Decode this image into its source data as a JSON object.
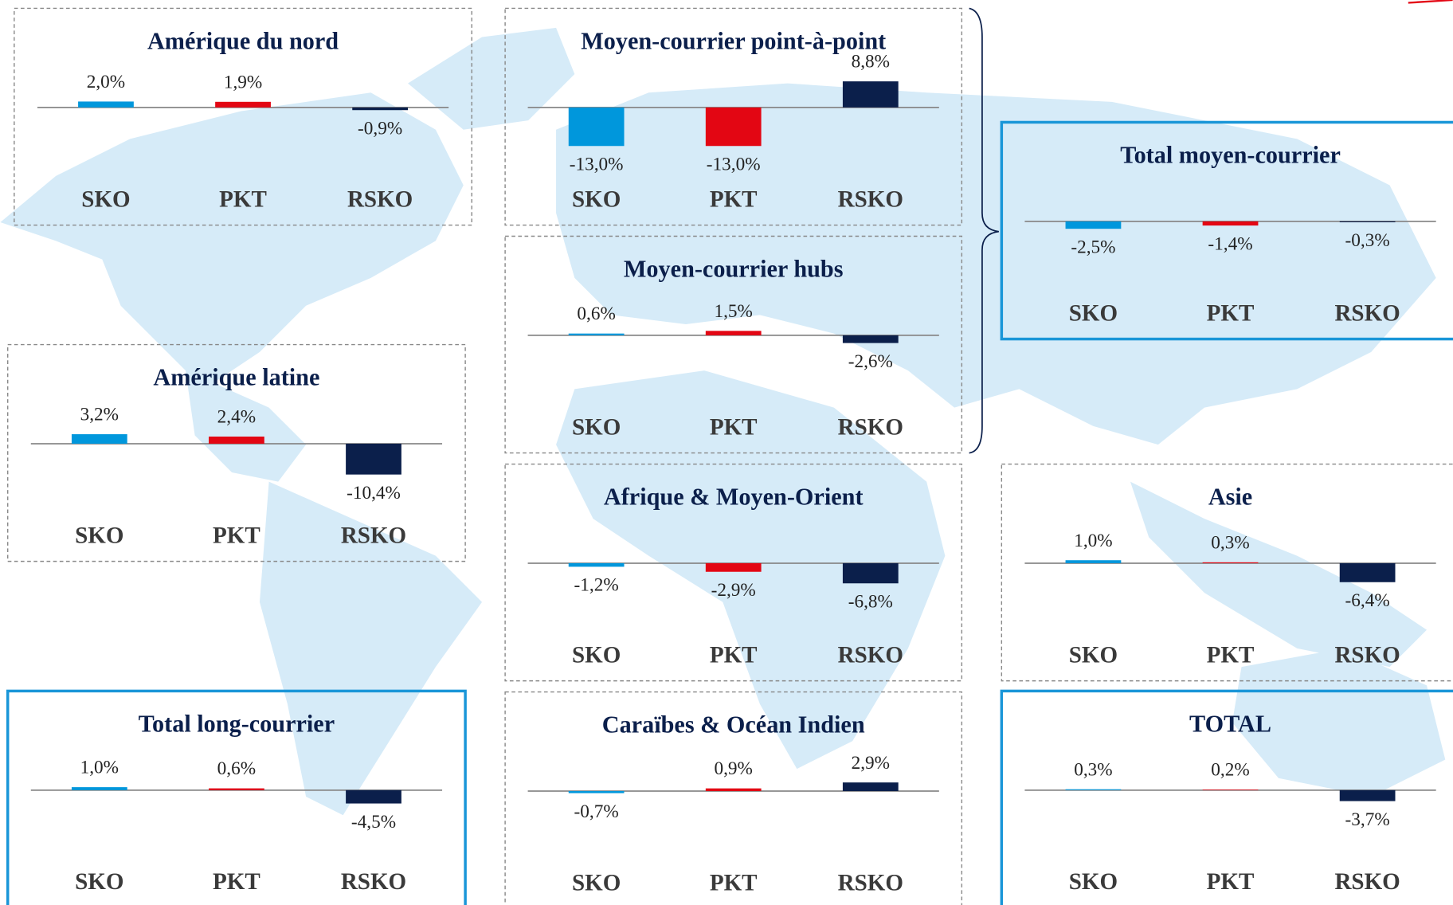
{
  "chart_data": [
    {
      "type": "bar",
      "title": "Amérique du nord",
      "categories": [
        "SKO",
        "PKT",
        "RSKO"
      ],
      "values": [
        2.0,
        1.9,
        -0.9
      ],
      "value_labels": [
        "2,0%",
        "1,9%",
        "-0,9%"
      ],
      "colors": [
        "#0097dc",
        "#e30613",
        "#0b1f4b"
      ]
    },
    {
      "type": "bar",
      "title": "Moyen-courrier point-à-point",
      "categories": [
        "SKO",
        "PKT",
        "RSKO"
      ],
      "values": [
        -13.0,
        -13.0,
        8.8
      ],
      "value_labels": [
        "-13,0%",
        "-13,0%",
        "8,8%"
      ],
      "colors": [
        "#0097dc",
        "#e30613",
        "#0b1f4b"
      ]
    },
    {
      "type": "bar",
      "title": "Moyen-courrier hubs",
      "categories": [
        "SKO",
        "PKT",
        "RSKO"
      ],
      "values": [
        0.6,
        1.5,
        -2.6
      ],
      "value_labels": [
        "0,6%",
        "1,5%",
        "-2,6%"
      ],
      "colors": [
        "#0097dc",
        "#e30613",
        "#0b1f4b"
      ]
    },
    {
      "type": "bar",
      "title": "Afrique & Moyen-Orient",
      "categories": [
        "SKO",
        "PKT",
        "RSKO"
      ],
      "values": [
        -1.2,
        -2.9,
        -6.8
      ],
      "value_labels": [
        "-1,2%",
        "-2,9%",
        "-6,8%"
      ],
      "colors": [
        "#0097dc",
        "#e30613",
        "#0b1f4b"
      ]
    },
    {
      "type": "bar",
      "title": "Caraïbes & Océan Indien",
      "categories": [
        "SKO",
        "PKT",
        "RSKO"
      ],
      "values": [
        -0.7,
        0.9,
        2.9
      ],
      "value_labels": [
        "-0,7%",
        "0,9%",
        "2,9%"
      ],
      "colors": [
        "#0097dc",
        "#e30613",
        "#0b1f4b"
      ]
    },
    {
      "type": "bar",
      "title": "Amérique latine",
      "categories": [
        "SKO",
        "PKT",
        "RSKO"
      ],
      "values": [
        3.2,
        2.4,
        -10.4
      ],
      "value_labels": [
        "3,2%",
        "2,4%",
        "-10,4%"
      ],
      "colors": [
        "#0097dc",
        "#e30613",
        "#0b1f4b"
      ]
    },
    {
      "type": "bar",
      "title": "Total long-courrier",
      "categories": [
        "SKO",
        "PKT",
        "RSKO"
      ],
      "values": [
        1.0,
        0.6,
        -4.5
      ],
      "value_labels": [
        "1,0%",
        "0,6%",
        "-4,5%"
      ],
      "colors": [
        "#0097dc",
        "#e30613",
        "#0b1f4b"
      ]
    },
    {
      "type": "bar",
      "title": "Total moyen-courrier",
      "categories": [
        "SKO",
        "PKT",
        "RSKO"
      ],
      "values": [
        -2.5,
        -1.4,
        -0.3
      ],
      "value_labels": [
        "-2,5%",
        "-1,4%",
        "-0,3%"
      ],
      "colors": [
        "#0097dc",
        "#e30613",
        "#0b1f4b"
      ]
    },
    {
      "type": "bar",
      "title": "Asie",
      "categories": [
        "SKO",
        "PKT",
        "RSKO"
      ],
      "values": [
        1.0,
        0.3,
        -6.4
      ],
      "value_labels": [
        "1,0%",
        "0,3%",
        "-6,4%"
      ],
      "colors": [
        "#0097dc",
        "#e30613",
        "#0b1f4b"
      ]
    },
    {
      "type": "bar",
      "title": "TOTAL",
      "categories": [
        "SKO",
        "PKT",
        "RSKO"
      ],
      "values": [
        0.3,
        0.2,
        -3.7
      ],
      "value_labels": [
        "0,3%",
        "0,2%",
        "-3,7%"
      ],
      "colors": [
        "#0097dc",
        "#e30613",
        "#0b1f4b"
      ]
    }
  ]
}
